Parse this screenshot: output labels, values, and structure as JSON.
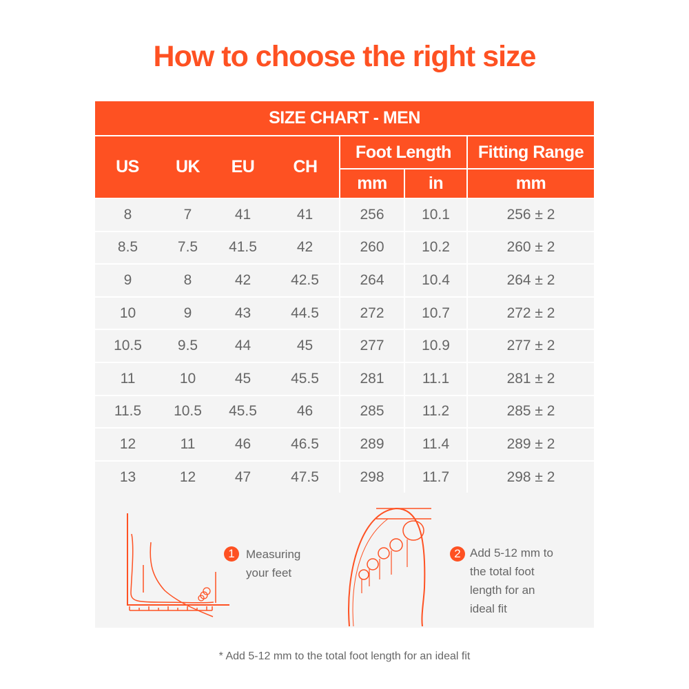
{
  "title": "How to choose the right size",
  "table": {
    "caption": "SIZE CHART - MEN",
    "headers": {
      "us": "US",
      "uk": "UK",
      "eu": "EU",
      "ch": "CH",
      "foot_length": "Foot Length",
      "fitting_range": "Fitting Range",
      "mm": "mm",
      "in": "in",
      "range_mm": "mm"
    },
    "rows": [
      [
        "8",
        "7",
        "41",
        "41",
        "256",
        "10.1",
        "256 ± 2"
      ],
      [
        "8.5",
        "7.5",
        "41.5",
        "42",
        "260",
        "10.2",
        "260 ± 2"
      ],
      [
        "9",
        "8",
        "42",
        "42.5",
        "264",
        "10.4",
        "264 ± 2"
      ],
      [
        "10",
        "9",
        "43",
        "44.5",
        "272",
        "10.7",
        "272 ± 2"
      ],
      [
        "10.5",
        "9.5",
        "44",
        "45",
        "277",
        "10.9",
        "277 ± 2"
      ],
      [
        "11",
        "10",
        "45",
        "45.5",
        "281",
        "11.1",
        "281 ± 2"
      ],
      [
        "11.5",
        "10.5",
        "45.5",
        "46",
        "285",
        "11.2",
        "285 ± 2"
      ],
      [
        "12",
        "11",
        "46",
        "46.5",
        "289",
        "11.4",
        "289 ± 2"
      ],
      [
        "13",
        "12",
        "47",
        "47.5",
        "298",
        "11.7",
        "298 ± 2"
      ]
    ]
  },
  "steps": [
    {
      "number": "1",
      "lines": [
        "Measuring",
        "your feet"
      ],
      "icon": "foot-side-ruler-icon"
    },
    {
      "number": "2",
      "lines": [
        "Add 5-12 mm to",
        "the total foot",
        "length for an",
        "ideal fit"
      ],
      "icon": "foot-top-toes-icon"
    }
  ],
  "footnote": "* Add 5-12 mm to the total foot length for an ideal fit",
  "colors": {
    "accent": "#fe5122",
    "row_bg": "#f4f4f4",
    "text": "#666666"
  }
}
